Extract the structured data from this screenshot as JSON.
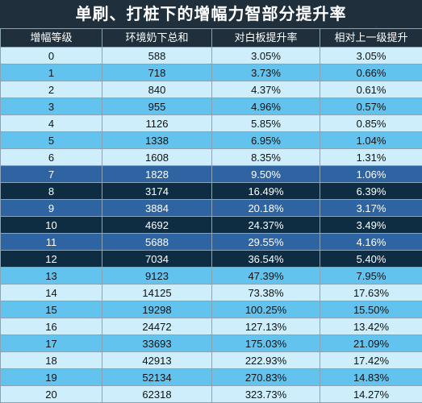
{
  "title": "单刷、打桩下的增幅力智部分提升率",
  "headers": [
    "增幅等级",
    "环境奶下总和",
    "对白板提升率",
    "相对上一级提升"
  ],
  "rows": [
    {
      "style": "light",
      "cells": [
        "0",
        "588",
        "3.05%",
        "3.05%"
      ]
    },
    {
      "style": "sky",
      "cells": [
        "1",
        "718",
        "3.73%",
        "0.66%"
      ]
    },
    {
      "style": "light",
      "cells": [
        "2",
        "840",
        "4.37%",
        "0.61%"
      ]
    },
    {
      "style": "sky",
      "cells": [
        "3",
        "955",
        "4.96%",
        "0.57%"
      ]
    },
    {
      "style": "light",
      "cells": [
        "4",
        "1126",
        "5.85%",
        "0.85%"
      ]
    },
    {
      "style": "sky",
      "cells": [
        "5",
        "1338",
        "6.95%",
        "1.04%"
      ]
    },
    {
      "style": "light",
      "cells": [
        "6",
        "1608",
        "8.35%",
        "1.31%"
      ]
    },
    {
      "style": "blue",
      "cells": [
        "7",
        "1828",
        "9.50%",
        "1.06%"
      ]
    },
    {
      "style": "navy",
      "cells": [
        "8",
        "3174",
        "16.49%",
        "6.39%"
      ]
    },
    {
      "style": "blue",
      "cells": [
        "9",
        "3884",
        "20.18%",
        "3.17%"
      ]
    },
    {
      "style": "navy",
      "cells": [
        "10",
        "4692",
        "24.37%",
        "3.49%"
      ]
    },
    {
      "style": "blue",
      "cells": [
        "11",
        "5688",
        "29.55%",
        "4.16%"
      ]
    },
    {
      "style": "navy",
      "cells": [
        "12",
        "7034",
        "36.54%",
        "5.40%"
      ]
    },
    {
      "style": "sky",
      "cells": [
        "13",
        "9123",
        "47.39%",
        "7.95%"
      ]
    },
    {
      "style": "light",
      "cells": [
        "14",
        "14125",
        "73.38%",
        "17.63%"
      ]
    },
    {
      "style": "sky",
      "cells": [
        "15",
        "19298",
        "100.25%",
        "15.50%"
      ]
    },
    {
      "style": "light",
      "cells": [
        "16",
        "24472",
        "127.13%",
        "13.42%"
      ]
    },
    {
      "style": "sky",
      "cells": [
        "17",
        "33693",
        "175.03%",
        "21.09%"
      ]
    },
    {
      "style": "light",
      "cells": [
        "18",
        "42913",
        "222.93%",
        "17.42%"
      ]
    },
    {
      "style": "sky",
      "cells": [
        "19",
        "52134",
        "270.83%",
        "14.83%"
      ]
    },
    {
      "style": "light",
      "cells": [
        "20",
        "62318",
        "323.73%",
        "14.27%"
      ]
    }
  ],
  "colors": {
    "header_bg": "#1f2f3b",
    "row_light": "#cdeefa",
    "row_sky": "#62c4ee",
    "row_blue": "#2f64a3",
    "row_navy": "#0e2d42"
  }
}
